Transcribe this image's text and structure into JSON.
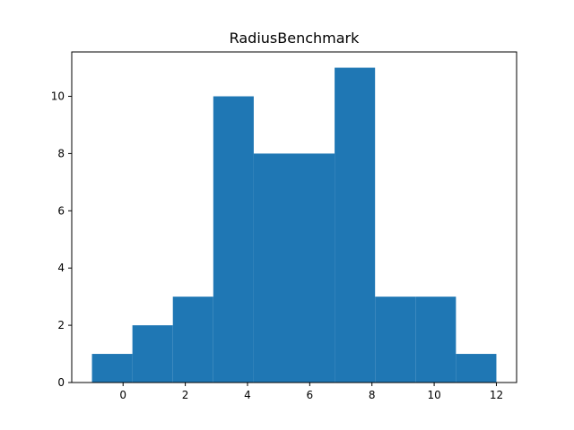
{
  "chart_data": {
    "type": "bar",
    "title": "RadiusBenchmark",
    "xlabel": "",
    "ylabel": "",
    "bin_edges": [
      -1.0,
      0.3,
      1.6,
      2.9,
      4.2,
      5.5,
      6.8,
      8.1,
      9.4,
      10.7,
      12.0
    ],
    "values": [
      1,
      2,
      3,
      10,
      8,
      8,
      11,
      3,
      3,
      1
    ],
    "xlim": [
      -1.65,
      12.65
    ],
    "ylim": [
      0,
      11.55
    ],
    "x_ticks": [
      0,
      2,
      4,
      6,
      8,
      10,
      12
    ],
    "y_ticks": [
      0,
      2,
      4,
      6,
      8,
      10
    ],
    "bar_color": "#1f77b4",
    "grid": false,
    "legend": "none"
  }
}
